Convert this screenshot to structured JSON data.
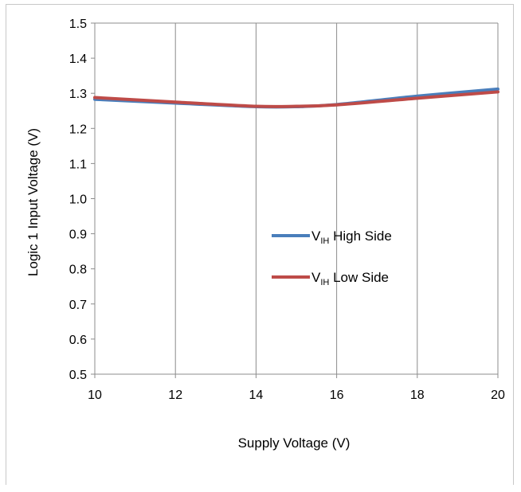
{
  "chart_data": {
    "type": "line",
    "title": "",
    "xlabel": "Supply Voltage (V)",
    "ylabel": "Logic 1 Input Voltage (V)",
    "xlim": [
      10,
      20
    ],
    "ylim": [
      0.5,
      1.5
    ],
    "x_ticks": [
      "10",
      "12",
      "14",
      "16",
      "18",
      "20"
    ],
    "y_ticks": [
      "0.5",
      "0.6",
      "0.7",
      "0.8",
      "0.9",
      "1.0",
      "1.1",
      "1.2",
      "1.3",
      "1.4",
      "1.5"
    ],
    "x_tick_values": [
      10,
      12,
      14,
      16,
      18,
      20
    ],
    "y_tick_values": [
      0.5,
      0.6,
      0.7,
      0.8,
      0.9,
      1.0,
      1.1,
      1.2,
      1.3,
      1.4,
      1.5
    ],
    "grid": "vertical",
    "legend_position": "center",
    "series": [
      {
        "name_main": "V",
        "name_sub": "IH",
        "name_rest": " High Side",
        "color": "#4a7ebb",
        "x": [
          10,
          12,
          14,
          15,
          16,
          18,
          20
        ],
        "y": [
          1.283,
          1.272,
          1.262,
          1.262,
          1.268,
          1.292,
          1.312
        ]
      },
      {
        "name_main": "V",
        "name_sub": "IH",
        "name_rest": " Low Side",
        "color": "#be4b48",
        "x": [
          10,
          12,
          14,
          15,
          16,
          18,
          20
        ],
        "y": [
          1.288,
          1.275,
          1.263,
          1.263,
          1.267,
          1.286,
          1.304
        ]
      }
    ]
  }
}
